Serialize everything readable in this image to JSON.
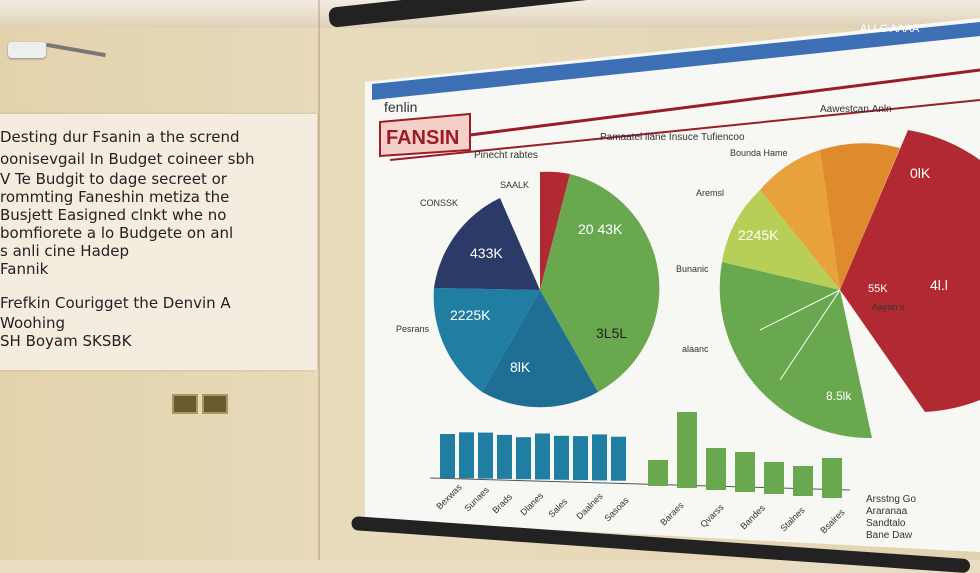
{
  "board": {
    "lines": [
      "Desting dur Fsanin a the scrend",
      "oonisevgail In Budget coineer sbh",
      "V  Te Budgit to dage secreet or",
      "rommting Faneshin metiza the",
      "Busjett Easigned clnkt whe no",
      "bomfiorete a lo Budgete on anl",
      "s anli cine Hadep",
      "Fannik"
    ],
    "lines2": [
      "Frefkin Courigget the Denvin A",
      "Woohing",
      "SH Boyam SKSBK"
    ]
  },
  "screen": {
    "logo_small": "fenlin",
    "logo_big": "FANSIN",
    "header_right": "ALLC AAAA",
    "sub_left": "Pinecht rabtes",
    "sub_mid": "Pamaatel ilane Insuce Tufiencoo",
    "sub_right": "Aawestcan.Anln",
    "left_pie_labels": [
      "433K",
      "2225K",
      "8lK",
      "20 43K",
      "3L5L"
    ],
    "right_pie_labels": [
      "2245K",
      "0lK",
      "55K",
      "4l.l",
      "8.5lk"
    ],
    "side_labels": [
      "SAALK",
      "CONSSK",
      "Pesrans",
      "Bunanic",
      "Aremsl",
      "alaanc",
      "Aayan s",
      "Bounda Hame"
    ],
    "bottom_labels": [
      "Bexwas",
      "Sunaes",
      "Brads",
      "Dlanes",
      "Sales",
      "Daalnes",
      "Sasoas",
      "Baraes",
      "Qvarss",
      "Bandes",
      "Stalnes",
      "Bsaires"
    ],
    "legend_lines": [
      "Arsstng Go",
      "Araranaa",
      "Sandtalo",
      "Bane Daw"
    ]
  },
  "colors": {
    "navy": "#2b3a67",
    "teal": "#1f7ea1",
    "green": "#6aa84f",
    "red": "#b12a33",
    "orange": "#e08a2e",
    "yellowgreen": "#9cc24a"
  }
}
